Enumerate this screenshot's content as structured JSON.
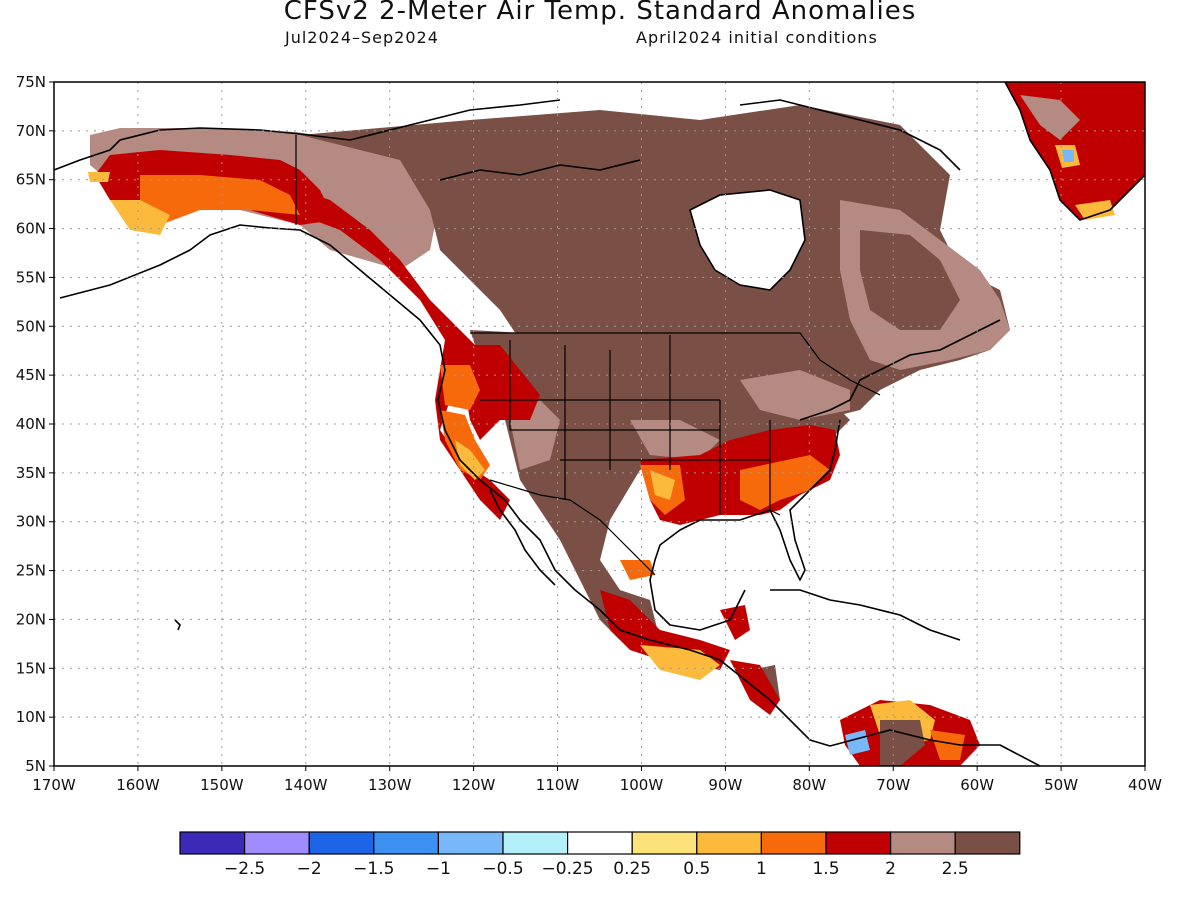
{
  "title": "CFSv2 2-Meter Air Temp. Standard Anomalies",
  "subtitle_left": "Jul2024–Sep2024",
  "subtitle_right": "April2024 initial conditions",
  "lat_labels": [
    "75N",
    "70N",
    "65N",
    "60N",
    "55N",
    "50N",
    "45N",
    "40N",
    "35N",
    "30N",
    "25N",
    "20N",
    "15N",
    "10N",
    "5N"
  ],
  "lon_labels": [
    "170W",
    "160W",
    "150W",
    "140W",
    "130W",
    "120W",
    "110W",
    "100W",
    "90W",
    "80W",
    "70W",
    "60W",
    "50W",
    "40W"
  ],
  "colorbar": {
    "colors": [
      "#3b2ab8",
      "#a08cff",
      "#1e64e6",
      "#3c90f0",
      "#78b8f8",
      "#b4f0fa",
      "#ffffff",
      "#fde27a",
      "#fbba3c",
      "#f66a0c",
      "#c00000",
      "#b48a82",
      "#7a5046"
    ],
    "labels": [
      "−2.5",
      "−2",
      "−1.5",
      "−1",
      "−0.5",
      "−0.25",
      "0.25",
      "0.5",
      "1",
      "1.5",
      "2",
      "2.5"
    ]
  }
}
